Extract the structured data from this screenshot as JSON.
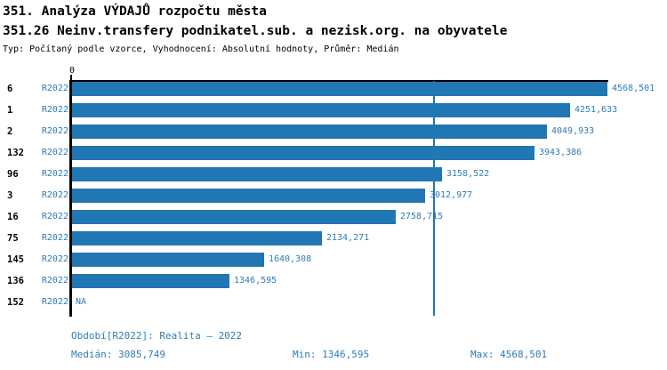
{
  "header": {
    "title": "351. Analýza VÝDAJŮ rozpočtu města",
    "subtitle": "351.26 Neinv.transfery podnikatel.sub. a nezisk.org. na obyvatele",
    "meta": "Typ: Počítaný podle vzorce, Vyhodnocení: Absolutní hodnoty, Průměr: Medián"
  },
  "chart_data": {
    "type": "bar",
    "orientation": "horizontal",
    "title": "351.26 Neinv.transfery podnikatel.sub. a nezisk.org. na obyvatele",
    "x_axis": {
      "zero_label": "0",
      "min": 0,
      "max": 4568.501,
      "ticks_shown": [
        "0"
      ]
    },
    "median_value": 3085.749,
    "categories": [
      "6",
      "1",
      "2",
      "132",
      "96",
      "3",
      "16",
      "75",
      "145",
      "136",
      "152"
    ],
    "rows": [
      {
        "rank": "6",
        "period": "R2022",
        "value": 4568.501,
        "label": "4568,501"
      },
      {
        "rank": "1",
        "period": "R2022",
        "value": 4251.633,
        "label": "4251,633"
      },
      {
        "rank": "2",
        "period": "R2022",
        "value": 4049.933,
        "label": "4049,933"
      },
      {
        "rank": "132",
        "period": "R2022",
        "value": 3943.386,
        "label": "3943,386"
      },
      {
        "rank": "96",
        "period": "R2022",
        "value": 3158.522,
        "label": "3158,522"
      },
      {
        "rank": "3",
        "period": "R2022",
        "value": 3012.977,
        "label": "3012,977"
      },
      {
        "rank": "16",
        "period": "R2022",
        "value": 2758.715,
        "label": "2758,715"
      },
      {
        "rank": "75",
        "period": "R2022",
        "value": 2134.271,
        "label": "2134,271"
      },
      {
        "rank": "145",
        "period": "R2022",
        "value": 1640.308,
        "label": "1640,308"
      },
      {
        "rank": "136",
        "period": "R2022",
        "value": 1346.595,
        "label": "1346,595"
      },
      {
        "rank": "152",
        "period": "R2022",
        "value": null,
        "label": "NA"
      }
    ],
    "colors": {
      "bar": "#2176b4",
      "blue_text": "#2e7cb5",
      "axis": "#000000"
    },
    "legend_position": "none",
    "grid": false
  },
  "footer": {
    "period_line": "Období[R2022]: Realita – 2022",
    "median": "Medián: 3085,749",
    "min": "Min: 1346,595",
    "max": "Max: 4568,501"
  }
}
